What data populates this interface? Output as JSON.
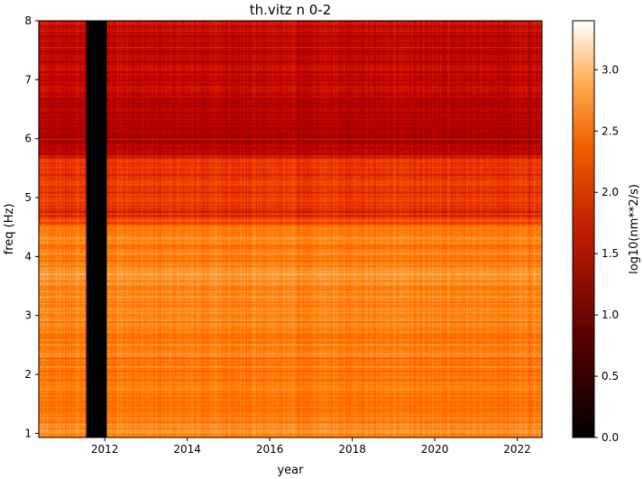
{
  "chart_data": {
    "type": "heatmap",
    "title": "th.vitz n 0-2",
    "xlabel": "year",
    "ylabel": "freq (Hz)",
    "xlim": [
      2010.4,
      2022.6
    ],
    "ylim": [
      0.93,
      8.0
    ],
    "x_ticks": [
      2012,
      2014,
      2016,
      2018,
      2020,
      2022
    ],
    "x_tick_labels": [
      "2012",
      "2014",
      "2016",
      "2018",
      "2020",
      "2022"
    ],
    "y_ticks": [
      1,
      2,
      3,
      4,
      5,
      6,
      7,
      8
    ],
    "y_tick_labels": [
      "1",
      "2",
      "3",
      "4",
      "5",
      "6",
      "7",
      "8"
    ],
    "colorbar": {
      "label": "log10(nm**2/s)",
      "colormap": "gist_heat",
      "range": [
        0.0,
        3.4
      ],
      "ticks": [
        0.0,
        0.5,
        1.0,
        1.5,
        2.0,
        2.5,
        3.0
      ],
      "tick_labels": [
        "0.0",
        "0.5",
        "1.0",
        "1.5",
        "2.0",
        "2.5",
        "3.0"
      ]
    },
    "gaps": [
      {
        "x_start": 2011.55,
        "x_end": 2012.05,
        "value": 0.0
      }
    ],
    "spectral_profile": {
      "freq_hz": [
        1.0,
        1.5,
        2.0,
        2.5,
        3.0,
        3.5,
        3.7,
        4.0,
        4.3,
        4.5,
        4.7,
        5.0,
        5.3,
        5.6,
        5.8,
        6.0,
        6.5,
        7.0,
        7.5,
        8.0
      ],
      "log10_power": [
        2.6,
        2.55,
        2.5,
        2.45,
        2.6,
        2.55,
        2.75,
        2.45,
        2.6,
        2.4,
        1.95,
        2.05,
        2.05,
        2.05,
        1.65,
        1.55,
        1.65,
        1.7,
        1.65,
        1.75
      ]
    }
  }
}
